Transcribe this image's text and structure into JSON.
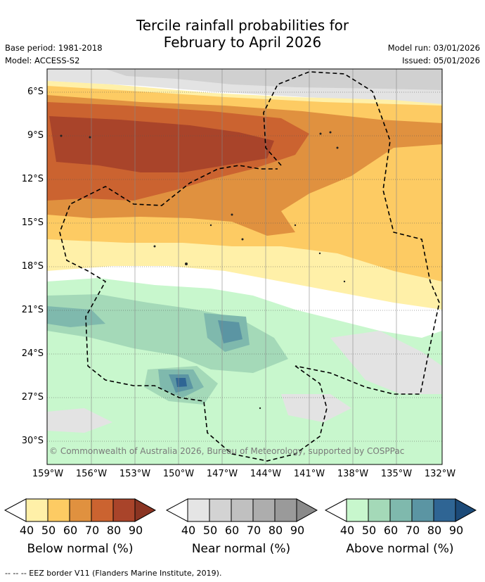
{
  "title_line1": "Tercile rainfall probabilities for",
  "title_line2": "February to April 2026",
  "base_period": "Base period: 1981-2018",
  "model": "Model: ACCESS-S2",
  "model_run": "Model run: 03/01/2026",
  "issued": "Issued: 05/01/2026",
  "copyright": "© Commonwealth of Australia 2026, Bureau of Meteorology, supported by COSPPac",
  "lat_labels": [
    "6°S",
    "9°S",
    "12°S",
    "15°S",
    "18°S",
    "21°S",
    "24°S",
    "27°S",
    "30°S"
  ],
  "lon_labels": [
    "159°W",
    "156°W",
    "153°W",
    "150°W",
    "147°W",
    "144°W",
    "141°W",
    "138°W",
    "135°W",
    "132°W"
  ],
  "legends": [
    {
      "caption": "Below normal (%)",
      "ticks": [
        "40",
        "50",
        "60",
        "70",
        "80",
        "90"
      ],
      "colors": [
        "#fff0a8",
        "#fdcb63",
        "#e0913f",
        "#cb6330",
        "#a9442a"
      ]
    },
    {
      "caption": "Near normal (%)",
      "ticks": [
        "40",
        "50",
        "60",
        "70",
        "80",
        "90"
      ],
      "colors": [
        "#e5e5e5",
        "#d3d3d3",
        "#c0c0c0",
        "#adadad",
        "#9a9a9a"
      ]
    },
    {
      "caption": "Above normal (%)",
      "ticks": [
        "40",
        "50",
        "60",
        "70",
        "80",
        "90"
      ],
      "colors": [
        "#c8f7cd",
        "#a4d9b8",
        "#7fb9ad",
        "#5b95a3",
        "#2f6594"
      ]
    }
  ],
  "footer": "--  --  -- EEZ border V11 (Flanders Marine Institute, 2019)."
}
